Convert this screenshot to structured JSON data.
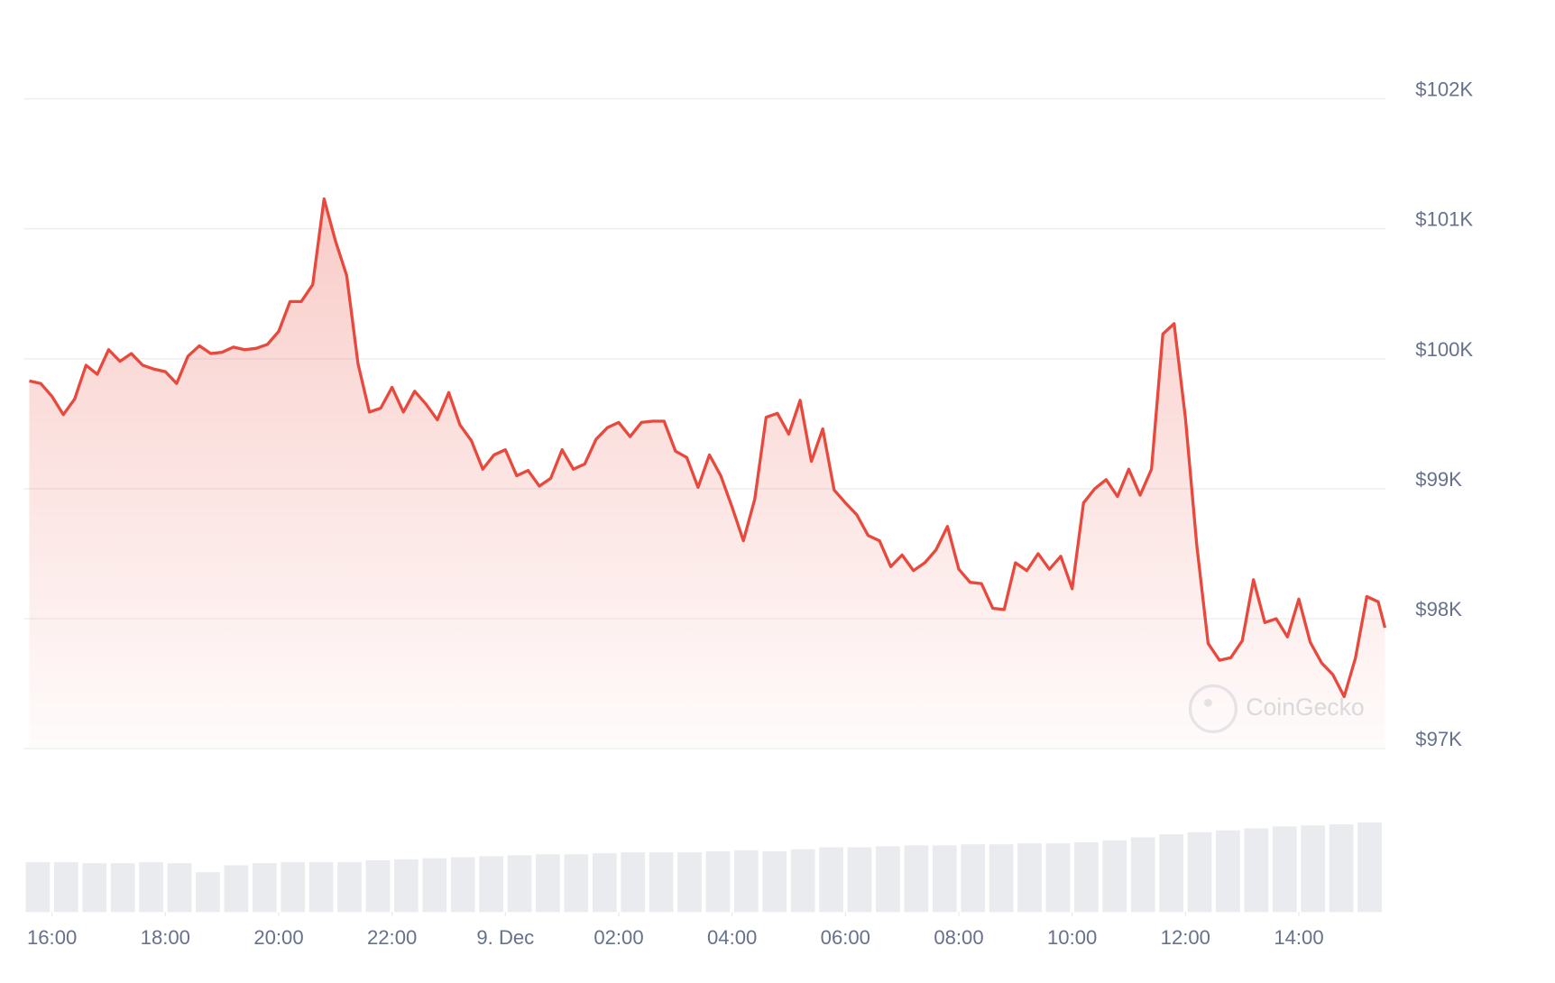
{
  "chart_data": {
    "type": "line",
    "watermark": "CoinGecko",
    "xlim": [
      15.54,
      39.53
    ],
    "xticks": [
      {
        "value": 16,
        "label": "16:00"
      },
      {
        "value": 18,
        "label": "18:00"
      },
      {
        "value": 20,
        "label": "20:00"
      },
      {
        "value": 22,
        "label": "22:00"
      },
      {
        "value": 24,
        "label": "9. Dec"
      },
      {
        "value": 26,
        "label": "02:00"
      },
      {
        "value": 28,
        "label": "04:00"
      },
      {
        "value": 30,
        "label": "06:00"
      },
      {
        "value": 32,
        "label": "08:00"
      },
      {
        "value": 34,
        "label": "10:00"
      },
      {
        "value": 36,
        "label": "12:00"
      },
      {
        "value": 38,
        "label": "14:00"
      }
    ],
    "ylim": [
      97000,
      102000
    ],
    "yticks": [
      {
        "value": 97000,
        "label": "$97K"
      },
      {
        "value": 98000,
        "label": "$98K"
      },
      {
        "value": 99000,
        "label": "$99K"
      },
      {
        "value": 100000,
        "label": "$100K"
      },
      {
        "value": 101000,
        "label": "$101K"
      },
      {
        "value": 102000,
        "label": "$102K"
      }
    ],
    "grid": true,
    "x": [
      15.6,
      15.8,
      16.0,
      16.2,
      16.4,
      16.6,
      16.8,
      17.0,
      17.2,
      17.4,
      17.6,
      17.8,
      18.0,
      18.2,
      18.4,
      18.6,
      18.8,
      19.0,
      19.2,
      19.4,
      19.6,
      19.8,
      20.0,
      20.2,
      20.4,
      20.6,
      20.8,
      21.0,
      21.2,
      21.4,
      21.6,
      21.8,
      22.0,
      22.2,
      22.4,
      22.6,
      22.8,
      23.0,
      23.2,
      23.4,
      23.6,
      23.8,
      24.0,
      24.2,
      24.4,
      24.6,
      24.8,
      25.0,
      25.2,
      25.4,
      25.6,
      25.8,
      26.0,
      26.2,
      26.4,
      26.6,
      26.8,
      27.0,
      27.2,
      27.4,
      27.6,
      27.8,
      28.0,
      28.2,
      28.4,
      28.6,
      28.8,
      29.0,
      29.2,
      29.4,
      29.6,
      29.8,
      30.0,
      30.2,
      30.4,
      30.6,
      30.8,
      31.0,
      31.2,
      31.4,
      31.6,
      31.8,
      32.0,
      32.2,
      32.4,
      32.6,
      32.8,
      33.0,
      33.2,
      33.4,
      33.6,
      33.8,
      34.0,
      34.2,
      34.4,
      34.6,
      34.8,
      35.0,
      35.2,
      35.4,
      35.6,
      35.8,
      36.0,
      36.2,
      36.4,
      36.6,
      36.8,
      37.0,
      37.2,
      37.4,
      37.6,
      37.8,
      38.0,
      38.2,
      38.4,
      38.6,
      38.8,
      39.0,
      39.2,
      39.4,
      39.52
    ],
    "series": [
      {
        "color": "#e8493c",
        "values": [
          99830,
          99810,
          99710,
          99570,
          99690,
          99950,
          99880,
          100070,
          99980,
          100040,
          99950,
          99920,
          99900,
          99810,
          100020,
          100100,
          100040,
          100050,
          100090,
          100070,
          100080,
          100110,
          100210,
          100440,
          100440,
          100570,
          101230,
          100910,
          100640,
          99960,
          99590,
          99620,
          99780,
          99590,
          99750,
          99650,
          99530,
          99740,
          99490,
          99370,
          99150,
          99260,
          99300,
          99100,
          99140,
          99020,
          99080,
          99300,
          99150,
          99190,
          99380,
          99470,
          99510,
          99400,
          99510,
          99520,
          99520,
          99290,
          99240,
          99010,
          99260,
          99100,
          98860,
          98600,
          98920,
          99550,
          99580,
          99420,
          99680,
          99210,
          99460,
          98990,
          98890,
          98800,
          98640,
          98600,
          98400,
          98490,
          98370,
          98430,
          98530,
          98710,
          98380,
          98280,
          98270,
          98080,
          98070,
          98430,
          98370,
          98500,
          98380,
          98480,
          98230,
          98890,
          99000,
          99070,
          98940,
          99150,
          98950,
          99150,
          100190,
          100270,
          99540,
          98560,
          97810,
          97680,
          97700,
          97830,
          98300,
          97970,
          98000,
          97860,
          98150,
          97820,
          97660,
          97570,
          97400,
          97700,
          98170,
          98130,
          97930
        ]
      },
      {
        "axis": "y2",
        "color": "#e9ebef",
        "x": [
          15.75,
          16.25,
          16.75,
          17.25,
          17.75,
          18.25,
          18.75,
          19.25,
          19.75,
          20.25,
          20.75,
          21.25,
          21.75,
          22.25,
          22.75,
          23.25,
          23.75,
          24.25,
          24.75,
          25.25,
          25.75,
          26.25,
          26.75,
          27.25,
          27.75,
          28.25,
          28.75,
          29.25,
          29.75,
          30.25,
          30.75,
          31.25,
          31.75,
          32.25,
          32.75,
          33.25,
          33.75,
          34.25,
          34.75,
          35.25,
          35.75,
          36.25,
          36.75,
          37.25,
          37.75,
          38.25,
          38.75,
          39.25
        ],
        "values": [
          50,
          50,
          49,
          49,
          50,
          49,
          40,
          47,
          49,
          50,
          50,
          50,
          52,
          53,
          54,
          55,
          56,
          57,
          58,
          58,
          59,
          60,
          60,
          60,
          61,
          62,
          61,
          63,
          65,
          65,
          66,
          67,
          67,
          68,
          68,
          69,
          69,
          70,
          72,
          75,
          78,
          80,
          82,
          84,
          86,
          87,
          88,
          90
        ]
      }
    ],
    "y2lim": [
      0,
      100
    ]
  }
}
